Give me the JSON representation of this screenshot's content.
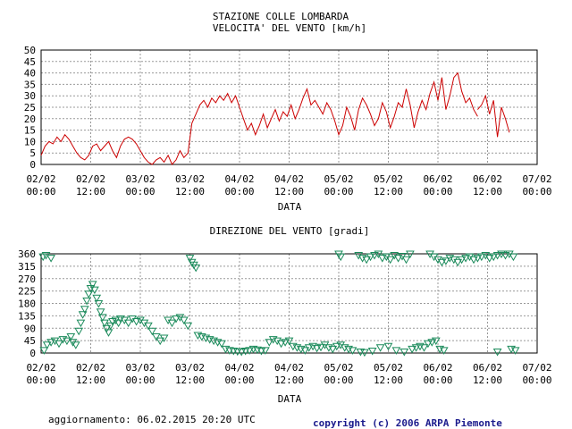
{
  "chart_data": [
    {
      "type": "line",
      "title": "STAZIONE COLLE LOMBARDA",
      "subtitle": "VELOCITA' DEL VENTO [km/h]",
      "xlabel": "DATA",
      "ylabel": "",
      "ylim": [
        0,
        50
      ],
      "yticks": [
        0,
        5,
        10,
        15,
        20,
        25,
        30,
        35,
        40,
        45,
        50
      ],
      "xlim_days": [
        0,
        5
      ],
      "xticks": [
        {
          "d": 0,
          "l1": "02/02",
          "l2": "00:00"
        },
        {
          "d": 0.5,
          "l1": "02/02",
          "l2": "12:00"
        },
        {
          "d": 1,
          "l1": "03/02",
          "l2": "00:00"
        },
        {
          "d": 1.5,
          "l1": "03/02",
          "l2": "12:00"
        },
        {
          "d": 2,
          "l1": "04/02",
          "l2": "00:00"
        },
        {
          "d": 2.5,
          "l1": "04/02",
          "l2": "12:00"
        },
        {
          "d": 3,
          "l1": "05/02",
          "l2": "00:00"
        },
        {
          "d": 3.5,
          "l1": "05/02",
          "l2": "12:00"
        },
        {
          "d": 4,
          "l1": "06/02",
          "l2": "00:00"
        },
        {
          "d": 4.5,
          "l1": "06/02",
          "l2": "12:00"
        },
        {
          "d": 5,
          "l1": "07/02",
          "l2": "00:00"
        }
      ],
      "grid": true,
      "color": "#cc0000",
      "series": [
        {
          "x_days": [
            0.0,
            0.04,
            0.08,
            0.12,
            0.16,
            0.2,
            0.24,
            0.28,
            0.32,
            0.36,
            0.4,
            0.44,
            0.48,
            0.52,
            0.56,
            0.6,
            0.64,
            0.68,
            0.72,
            0.76,
            0.8,
            0.84,
            0.88,
            0.92,
            0.96,
            1.0,
            1.04,
            1.08,
            1.12,
            1.16,
            1.2,
            1.24,
            1.28,
            1.32,
            1.36,
            1.4,
            1.44,
            1.48,
            1.52,
            1.56,
            1.6,
            1.64,
            1.68,
            1.72,
            1.76,
            1.8,
            1.84,
            1.88,
            1.92,
            1.96,
            2.0,
            2.04,
            2.08,
            2.12,
            2.16,
            2.2,
            2.24,
            2.28,
            2.32,
            2.36,
            2.4,
            2.44,
            2.48,
            2.52,
            2.56,
            2.6,
            2.64,
            2.68,
            2.72,
            2.76,
            2.8,
            2.84,
            2.88,
            2.92,
            2.96,
            3.0,
            3.04,
            3.08,
            3.12,
            3.16,
            3.2,
            3.24,
            3.28,
            3.32,
            3.36,
            3.4,
            3.44,
            3.48,
            3.52,
            3.56,
            3.6,
            3.64,
            3.68,
            3.72,
            3.76,
            3.8,
            3.84,
            3.88,
            3.92,
            3.96,
            4.0,
            4.04,
            4.08,
            4.12,
            4.16,
            4.2,
            4.24,
            4.28,
            4.32,
            4.36,
            4.4
          ],
          "values": [
            4,
            8,
            10,
            9,
            12,
            10,
            13,
            11,
            8,
            5,
            3,
            2,
            4,
            8,
            9,
            6,
            8,
            10,
            6,
            3,
            8,
            11,
            12,
            11,
            9,
            6,
            3,
            1,
            0,
            2,
            3,
            1,
            4,
            0,
            2,
            6,
            3,
            5,
            18,
            22,
            26,
            28,
            25,
            29,
            27,
            30,
            28,
            31,
            27,
            30,
            25,
            20,
            15,
            18,
            13,
            17,
            22,
            16,
            20,
            24,
            19,
            23,
            21,
            26,
            20,
            24,
            29,
            33,
            26,
            28,
            25,
            22,
            27,
            24,
            19,
            13,
            17,
            25,
            21,
            15,
            24,
            29,
            26,
            22,
            17,
            20,
            27,
            23,
            16,
            21,
            27,
            25,
            33,
            26,
            16,
            23,
            28,
            24,
            31,
            36,
            28,
            38,
            24,
            30,
            38,
            40,
            32,
            27,
            29,
            24,
            21
          ]
        },
        {
          "x_days": [
            4.4,
            4.44,
            4.48,
            4.52,
            4.56,
            4.6,
            4.64,
            4.68,
            4.72
          ],
          "values": [
            24,
            26,
            30,
            22,
            28,
            12,
            25,
            20,
            14
          ]
        }
      ]
    },
    {
      "type": "scatter",
      "title": "DIREZIONE DEL VENTO [gradi]",
      "xlabel": "DATA",
      "ylabel": "",
      "ylim": [
        0,
        360
      ],
      "yticks": [
        0,
        45,
        90,
        135,
        180,
        225,
        270,
        315,
        360
      ],
      "xlim_days": [
        0,
        5
      ],
      "xticks": [
        {
          "d": 0,
          "l1": "02/02",
          "l2": "00:00"
        },
        {
          "d": 0.5,
          "l1": "02/02",
          "l2": "12:00"
        },
        {
          "d": 1,
          "l1": "03/02",
          "l2": "00:00"
        },
        {
          "d": 1.5,
          "l1": "03/02",
          "l2": "12:00"
        },
        {
          "d": 2,
          "l1": "04/02",
          "l2": "00:00"
        },
        {
          "d": 2.5,
          "l1": "04/02",
          "l2": "12:00"
        },
        {
          "d": 3,
          "l1": "05/02",
          "l2": "00:00"
        },
        {
          "d": 3.5,
          "l1": "05/02",
          "l2": "12:00"
        },
        {
          "d": 4,
          "l1": "06/02",
          "l2": "00:00"
        },
        {
          "d": 4.5,
          "l1": "06/02",
          "l2": "12:00"
        },
        {
          "d": 5,
          "l1": "07/02",
          "l2": "00:00"
        }
      ],
      "grid": true,
      "marker": "triangle-down",
      "color": "#1a8a5a",
      "points": [
        [
          0.02,
          350
        ],
        [
          0.05,
          355
        ],
        [
          0.1,
          345
        ],
        [
          0.03,
          10
        ],
        [
          0.06,
          30
        ],
        [
          0.1,
          40
        ],
        [
          0.14,
          45
        ],
        [
          0.18,
          35
        ],
        [
          0.22,
          50
        ],
        [
          0.26,
          45
        ],
        [
          0.3,
          60
        ],
        [
          0.32,
          40
        ],
        [
          0.35,
          30
        ],
        [
          0.38,
          80
        ],
        [
          0.4,
          110
        ],
        [
          0.42,
          140
        ],
        [
          0.44,
          160
        ],
        [
          0.46,
          190
        ],
        [
          0.48,
          215
        ],
        [
          0.5,
          235
        ],
        [
          0.52,
          250
        ],
        [
          0.54,
          230
        ],
        [
          0.56,
          200
        ],
        [
          0.58,
          180
        ],
        [
          0.6,
          150
        ],
        [
          0.62,
          130
        ],
        [
          0.64,
          110
        ],
        [
          0.66,
          90
        ],
        [
          0.68,
          75
        ],
        [
          0.7,
          100
        ],
        [
          0.72,
          115
        ],
        [
          0.75,
          120
        ],
        [
          0.78,
          110
        ],
        [
          0.8,
          125
        ],
        [
          0.84,
          120
        ],
        [
          0.88,
          110
        ],
        [
          0.92,
          125
        ],
        [
          0.96,
          115
        ],
        [
          1.0,
          120
        ],
        [
          1.04,
          110
        ],
        [
          1.08,
          100
        ],
        [
          1.12,
          80
        ],
        [
          1.16,
          60
        ],
        [
          1.2,
          45
        ],
        [
          1.24,
          55
        ],
        [
          1.28,
          120
        ],
        [
          1.32,
          110
        ],
        [
          1.36,
          125
        ],
        [
          1.4,
          130
        ],
        [
          1.44,
          120
        ],
        [
          1.48,
          100
        ],
        [
          1.5,
          345
        ],
        [
          1.52,
          330
        ],
        [
          1.54,
          320
        ],
        [
          1.56,
          310
        ],
        [
          1.58,
          65
        ],
        [
          1.62,
          60
        ],
        [
          1.66,
          55
        ],
        [
          1.7,
          50
        ],
        [
          1.74,
          45
        ],
        [
          1.78,
          40
        ],
        [
          1.82,
          35
        ],
        [
          1.86,
          15
        ],
        [
          1.9,
          10
        ],
        [
          1.94,
          8
        ],
        [
          1.98,
          6
        ],
        [
          2.02,
          5
        ],
        [
          2.06,
          8
        ],
        [
          2.1,
          10
        ],
        [
          2.14,
          15
        ],
        [
          2.18,
          12
        ],
        [
          2.22,
          8
        ],
        [
          2.26,
          10
        ],
        [
          2.3,
          40
        ],
        [
          2.34,
          50
        ],
        [
          2.38,
          45
        ],
        [
          2.42,
          35
        ],
        [
          2.46,
          40
        ],
        [
          2.5,
          45
        ],
        [
          2.54,
          25
        ],
        [
          2.58,
          20
        ],
        [
          2.62,
          15
        ],
        [
          2.66,
          10
        ],
        [
          2.7,
          20
        ],
        [
          2.74,
          25
        ],
        [
          2.78,
          18
        ],
        [
          2.82,
          22
        ],
        [
          2.86,
          30
        ],
        [
          2.9,
          20
        ],
        [
          2.94,
          15
        ],
        [
          2.98,
          25
        ],
        [
          3.02,
          30
        ],
        [
          3.06,
          20
        ],
        [
          3.1,
          15
        ],
        [
          3.14,
          10
        ],
        [
          3.0,
          360
        ],
        [
          3.02,
          350
        ],
        [
          3.2,
          355
        ],
        [
          3.24,
          345
        ],
        [
          3.28,
          340
        ],
        [
          3.32,
          350
        ],
        [
          3.36,
          355
        ],
        [
          3.4,
          360
        ],
        [
          3.44,
          345
        ],
        [
          3.48,
          350
        ],
        [
          3.52,
          340
        ],
        [
          3.56,
          355
        ],
        [
          3.6,
          345
        ],
        [
          3.64,
          352
        ],
        [
          3.68,
          340
        ],
        [
          3.72,
          360
        ],
        [
          3.22,
          5
        ],
        [
          3.26,
          3
        ],
        [
          3.34,
          8
        ],
        [
          3.42,
          20
        ],
        [
          3.5,
          25
        ],
        [
          3.58,
          10
        ],
        [
          3.66,
          5
        ],
        [
          3.74,
          15
        ],
        [
          3.78,
          20
        ],
        [
          3.82,
          25
        ],
        [
          3.86,
          20
        ],
        [
          3.9,
          35
        ],
        [
          3.94,
          40
        ],
        [
          3.98,
          45
        ],
        [
          4.02,
          15
        ],
        [
          4.06,
          10
        ],
        [
          3.92,
          360
        ],
        [
          3.96,
          350
        ],
        [
          4.0,
          340
        ],
        [
          4.04,
          330
        ],
        [
          4.08,
          335
        ],
        [
          4.12,
          345
        ],
        [
          4.16,
          340
        ],
        [
          4.2,
          330
        ],
        [
          4.24,
          340
        ],
        [
          4.28,
          345
        ],
        [
          4.32,
          350
        ],
        [
          4.36,
          340
        ],
        [
          4.4,
          345
        ],
        [
          4.44,
          350
        ],
        [
          4.48,
          355
        ],
        [
          4.52,
          345
        ],
        [
          4.56,
          350
        ],
        [
          4.6,
          355
        ],
        [
          4.64,
          360
        ],
        [
          4.68,
          355
        ],
        [
          4.72,
          360
        ],
        [
          4.76,
          350
        ],
        [
          4.6,
          5
        ],
        [
          4.74,
          15
        ],
        [
          4.78,
          10
        ]
      ]
    }
  ],
  "footer": {
    "updated": "aggiornamento: 06.02.2015 20:20 UTC",
    "copyright": "copyright (c) 2006 ARPA Piemonte"
  }
}
